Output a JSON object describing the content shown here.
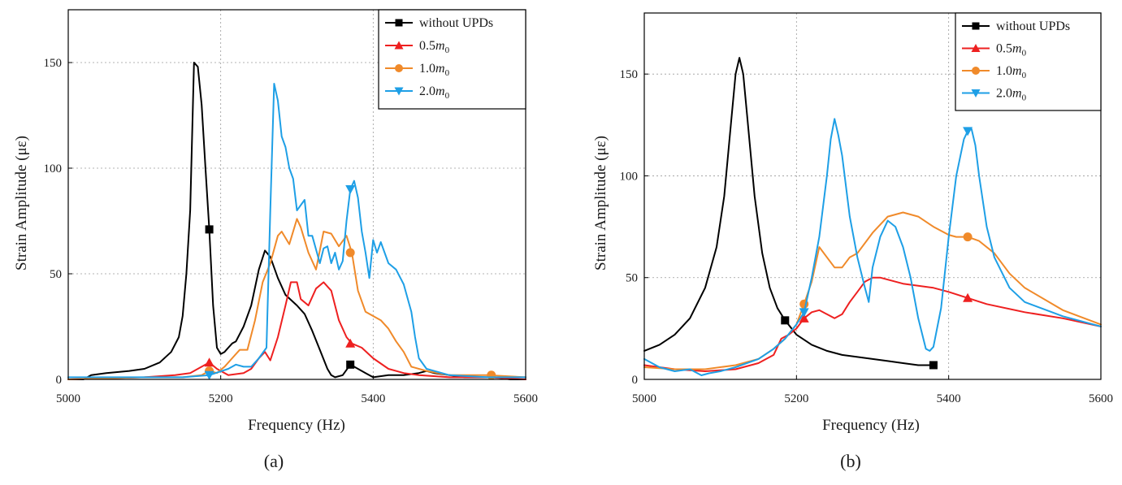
{
  "colors": {
    "without": "#000000",
    "m05": "#ee2020",
    "m10": "#f08a2a",
    "m20": "#1e9fe6"
  },
  "chart_data": [
    {
      "type": "line",
      "panel_label": "(a)",
      "xlabel": "Frequency (Hz)",
      "ylabel": "Strain Amplitude (με)",
      "xlim": [
        5000,
        5600
      ],
      "ylim": [
        0,
        175
      ],
      "xticks": [
        5000,
        5200,
        5400,
        5600
      ],
      "xtick_labels": [
        "5000",
        "5200",
        "5400",
        "5600"
      ],
      "yticks": [
        0,
        50,
        100,
        150
      ],
      "ytick_labels": [
        "0",
        "50",
        "100",
        "150"
      ],
      "grid": true,
      "legend_position": "top-right",
      "series": [
        {
          "name": "without UPDs",
          "base": "without UPDs",
          "sub": "",
          "color": "#000000",
          "marker": "square",
          "marker_points": [
            [
              5185,
              71
            ],
            [
              5370,
              7
            ]
          ],
          "x": [
            5000,
            5020,
            5030,
            5050,
            5080,
            5100,
            5120,
            5135,
            5145,
            5150,
            5155,
            5160,
            5165,
            5170,
            5175,
            5180,
            5185,
            5190,
            5195,
            5200,
            5205,
            5210,
            5215,
            5220,
            5230,
            5240,
            5250,
            5258,
            5265,
            5275,
            5285,
            5300,
            5310,
            5320,
            5330,
            5340,
            5345,
            5350,
            5360,
            5370,
            5380,
            5390,
            5400,
            5420,
            5440,
            5460,
            5470,
            5480,
            5500,
            5520,
            5540,
            5560,
            5580,
            5600
          ],
          "y": [
            0,
            0,
            2,
            3,
            4,
            5,
            8,
            13,
            20,
            30,
            50,
            80,
            150,
            148,
            130,
            100,
            71,
            35,
            15,
            12,
            13,
            15,
            17,
            18,
            25,
            35,
            52,
            61,
            58,
            48,
            40,
            35,
            31,
            23,
            14,
            5,
            2,
            1,
            2,
            7,
            5,
            3,
            1,
            2,
            2,
            3,
            4,
            3,
            2,
            1,
            1,
            1,
            0,
            0
          ]
        },
        {
          "name": "0.5m0",
          "base": "0.5",
          "sub": "0",
          "color": "#ee2020",
          "marker": "triangle-up",
          "marker_points": [
            [
              5185,
              8
            ],
            [
              5370,
              17
            ]
          ],
          "x": [
            5000,
            5100,
            5140,
            5160,
            5175,
            5185,
            5195,
            5210,
            5230,
            5240,
            5250,
            5258,
            5265,
            5275,
            5285,
            5292,
            5300,
            5305,
            5315,
            5325,
            5335,
            5345,
            5355,
            5365,
            5372,
            5385,
            5400,
            5420,
            5440,
            5460,
            5500,
            5550,
            5600
          ],
          "y": [
            0,
            1,
            2,
            3,
            6,
            8,
            5,
            2,
            3,
            5,
            10,
            13,
            9,
            20,
            35,
            46,
            46,
            38,
            35,
            43,
            46,
            42,
            28,
            20,
            17,
            15,
            10,
            5,
            3,
            2,
            1,
            1,
            0
          ]
        },
        {
          "name": "1.0m0",
          "base": "1.0",
          "sub": "0",
          "color": "#f08a2a",
          "marker": "circle",
          "marker_points": [
            [
              5185,
              4
            ],
            [
              5370,
              60
            ],
            [
              5555,
              2
            ]
          ],
          "x": [
            5000,
            5100,
            5150,
            5175,
            5185,
            5195,
            5205,
            5215,
            5225,
            5235,
            5245,
            5255,
            5265,
            5275,
            5280,
            5290,
            5300,
            5305,
            5315,
            5325,
            5335,
            5345,
            5355,
            5365,
            5372,
            5380,
            5390,
            5400,
            5410,
            5420,
            5430,
            5440,
            5450,
            5470,
            5500,
            5550,
            5600
          ],
          "y": [
            0,
            1,
            1,
            2,
            4,
            3,
            6,
            10,
            14,
            14,
            28,
            46,
            55,
            68,
            70,
            64,
            76,
            72,
            60,
            52,
            70,
            69,
            63,
            68,
            60,
            42,
            32,
            30,
            28,
            24,
            18,
            13,
            6,
            4,
            2,
            2,
            1
          ]
        },
        {
          "name": "2.0m0",
          "base": "2.0",
          "sub": "0",
          "color": "#1e9fe6",
          "marker": "triangle-down",
          "marker_points": [
            [
              5185,
              2
            ],
            [
              5370,
              90
            ]
          ],
          "x": [
            5000,
            5100,
            5150,
            5185,
            5210,
            5220,
            5230,
            5240,
            5250,
            5260,
            5265,
            5270,
            5275,
            5280,
            5285,
            5290,
            5295,
            5300,
            5310,
            5315,
            5320,
            5330,
            5335,
            5340,
            5345,
            5350,
            5355,
            5360,
            5365,
            5370,
            5375,
            5380,
            5385,
            5390,
            5395,
            5400,
            5405,
            5410,
            5420,
            5430,
            5440,
            5450,
            5455,
            5460,
            5470,
            5500,
            5550,
            5600
          ],
          "y": [
            1,
            1,
            1,
            2,
            5,
            7,
            6,
            6,
            10,
            15,
            80,
            140,
            132,
            115,
            110,
            100,
            95,
            80,
            85,
            68,
            68,
            55,
            62,
            63,
            55,
            60,
            52,
            56,
            75,
            90,
            94,
            86,
            70,
            60,
            48,
            66,
            60,
            65,
            55,
            52,
            45,
            32,
            20,
            10,
            5,
            2,
            1,
            1
          ]
        }
      ]
    },
    {
      "type": "line",
      "panel_label": "(b)",
      "xlabel": "Frequency (Hz)",
      "ylabel": "Strain Amplitude (με)",
      "xlim": [
        5000,
        5600
      ],
      "ylim": [
        0,
        180
      ],
      "xticks": [
        5000,
        5200,
        5400,
        5600
      ],
      "xtick_labels": [
        "5000",
        "5200",
        "5400",
        "5600"
      ],
      "yticks": [
        0,
        50,
        100,
        150
      ],
      "ytick_labels": [
        "0",
        "50",
        "100",
        "150"
      ],
      "grid": true,
      "legend_position": "top-right",
      "series": [
        {
          "name": "without UPDs",
          "base": "without UPDs",
          "sub": "",
          "color": "#000000",
          "marker": "square",
          "marker_points": [
            [
              5185,
              29
            ],
            [
              5380,
              7
            ]
          ],
          "x": [
            5000,
            5020,
            5040,
            5060,
            5080,
            5095,
            5105,
            5115,
            5120,
            5125,
            5130,
            5135,
            5145,
            5155,
            5165,
            5175,
            5185,
            5200,
            5220,
            5240,
            5260,
            5280,
            5300,
            5320,
            5340,
            5360,
            5380
          ],
          "y": [
            14,
            17,
            22,
            30,
            45,
            65,
            90,
            130,
            150,
            158,
            150,
            130,
            90,
            62,
            45,
            35,
            29,
            22,
            17,
            14,
            12,
            11,
            10,
            9,
            8,
            7,
            7
          ]
        },
        {
          "name": "0.5m0",
          "base": "0.5",
          "sub": "0",
          "color": "#ee2020",
          "marker": "triangle-up",
          "marker_points": [
            [
              5210,
              30
            ],
            [
              5425,
              40
            ]
          ],
          "x": [
            5000,
            5040,
            5080,
            5120,
            5150,
            5170,
            5180,
            5190,
            5200,
            5210,
            5220,
            5230,
            5240,
            5250,
            5260,
            5270,
            5280,
            5290,
            5300,
            5310,
            5320,
            5340,
            5360,
            5380,
            5400,
            5425,
            5450,
            5500,
            5550,
            5600
          ],
          "y": [
            7,
            5,
            4,
            5,
            8,
            12,
            20,
            22,
            25,
            30,
            33,
            34,
            32,
            30,
            32,
            38,
            43,
            48,
            50,
            50,
            49,
            47,
            46,
            45,
            43,
            40,
            37,
            33,
            30,
            26
          ]
        },
        {
          "name": "1.0m0",
          "base": "1.0",
          "sub": "0",
          "color": "#f08a2a",
          "marker": "circle",
          "marker_points": [
            [
              5210,
              37
            ],
            [
              5425,
              70
            ]
          ],
          "x": [
            5000,
            5040,
            5080,
            5120,
            5150,
            5170,
            5185,
            5200,
            5210,
            5220,
            5230,
            5240,
            5250,
            5260,
            5270,
            5280,
            5300,
            5320,
            5340,
            5360,
            5380,
            5400,
            5410,
            5425,
            5440,
            5460,
            5480,
            5500,
            5550,
            5600
          ],
          "y": [
            6,
            5,
            5,
            7,
            10,
            15,
            20,
            27,
            37,
            48,
            65,
            60,
            55,
            55,
            60,
            62,
            72,
            80,
            82,
            80,
            75,
            71,
            70,
            70,
            68,
            62,
            52,
            45,
            34,
            27
          ]
        },
        {
          "name": "2.0m0",
          "base": "2.0",
          "sub": "0",
          "color": "#1e9fe6",
          "marker": "triangle-down",
          "marker_points": [
            [
              5210,
              33
            ],
            [
              5425,
              122
            ]
          ],
          "x": [
            5000,
            5020,
            5040,
            5060,
            5075,
            5085,
            5100,
            5120,
            5150,
            5170,
            5185,
            5200,
            5210,
            5220,
            5230,
            5240,
            5245,
            5250,
            5255,
            5260,
            5270,
            5280,
            5290,
            5295,
            5300,
            5310,
            5320,
            5330,
            5340,
            5350,
            5360,
            5370,
            5375,
            5380,
            5390,
            5400,
            5410,
            5420,
            5425,
            5430,
            5435,
            5440,
            5450,
            5460,
            5480,
            5500,
            5550,
            5600
          ],
          "y": [
            10,
            6,
            4,
            5,
            2,
            3,
            4,
            6,
            10,
            15,
            20,
            27,
            33,
            50,
            70,
            100,
            118,
            128,
            120,
            110,
            80,
            60,
            45,
            38,
            55,
            70,
            78,
            75,
            65,
            50,
            30,
            15,
            14,
            16,
            35,
            70,
            100,
            118,
            122,
            123,
            115,
            100,
            75,
            60,
            45,
            38,
            31,
            26
          ]
        }
      ]
    }
  ]
}
